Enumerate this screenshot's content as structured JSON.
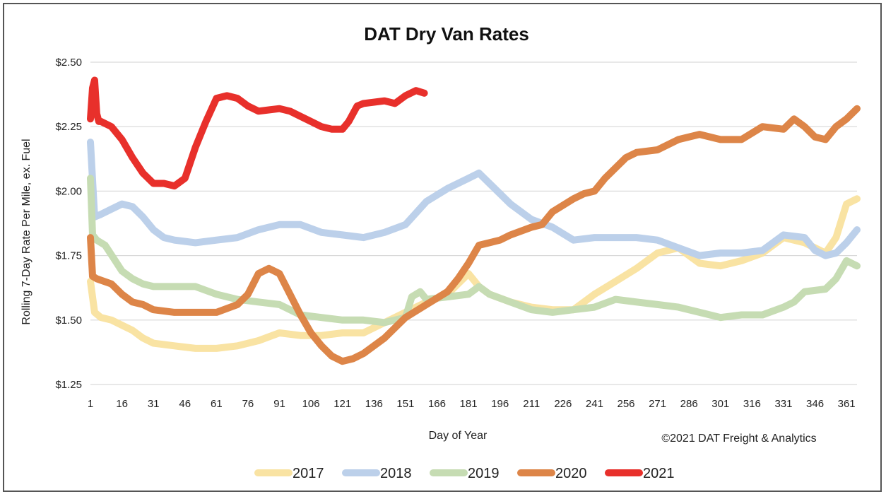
{
  "chart_data": {
    "type": "line",
    "title": "DAT Dry Van Rates",
    "xlabel": "Day of Year",
    "ylabel": "Rolling 7-Day Rate Per Mile, ex. Fuel",
    "credit": "©2021 DAT Freight & Analytics",
    "ylim": [
      1.25,
      2.5
    ],
    "xlim": [
      1,
      366
    ],
    "yticks": [
      {
        "value": 2.5,
        "label": "$2.50"
      },
      {
        "value": 2.25,
        "label": "$2.25"
      },
      {
        "value": 2.0,
        "label": "$2.00"
      },
      {
        "value": 1.75,
        "label": "$1.75"
      },
      {
        "value": 1.5,
        "label": "$1.50"
      },
      {
        "value": 1.25,
        "label": "$1.25"
      }
    ],
    "xticks": [
      1,
      16,
      31,
      46,
      61,
      76,
      91,
      106,
      121,
      136,
      151,
      166,
      181,
      196,
      211,
      226,
      241,
      256,
      271,
      286,
      301,
      316,
      331,
      346,
      361
    ],
    "grid": true,
    "legend_position": "bottom",
    "series": [
      {
        "name": "2017",
        "color": "#f9e3a3",
        "x": [
          1,
          3,
          6,
          11,
          16,
          21,
          26,
          31,
          41,
          51,
          61,
          71,
          81,
          91,
          101,
          111,
          121,
          131,
          141,
          151,
          161,
          171,
          181,
          186,
          191,
          201,
          211,
          221,
          231,
          241,
          251,
          261,
          271,
          281,
          286,
          291,
          301,
          311,
          321,
          331,
          341,
          351,
          356,
          361,
          366
        ],
        "y": [
          1.65,
          1.53,
          1.51,
          1.5,
          1.48,
          1.46,
          1.43,
          1.41,
          1.4,
          1.39,
          1.39,
          1.4,
          1.42,
          1.45,
          1.44,
          1.44,
          1.45,
          1.45,
          1.49,
          1.53,
          1.57,
          1.6,
          1.68,
          1.63,
          1.6,
          1.57,
          1.55,
          1.54,
          1.54,
          1.6,
          1.65,
          1.7,
          1.76,
          1.78,
          1.75,
          1.72,
          1.71,
          1.73,
          1.76,
          1.82,
          1.8,
          1.76,
          1.82,
          1.95,
          1.97
        ]
      },
      {
        "name": "2018",
        "color": "#bcd0ea",
        "x": [
          1,
          3,
          6,
          11,
          16,
          21,
          26,
          31,
          36,
          41,
          51,
          61,
          71,
          81,
          91,
          101,
          111,
          121,
          131,
          141,
          151,
          161,
          171,
          181,
          186,
          191,
          201,
          211,
          221,
          231,
          241,
          251,
          261,
          271,
          281,
          291,
          301,
          311,
          321,
          331,
          341,
          346,
          351,
          356,
          361,
          366
        ],
        "y": [
          2.19,
          1.9,
          1.91,
          1.93,
          1.95,
          1.94,
          1.9,
          1.85,
          1.82,
          1.81,
          1.8,
          1.81,
          1.82,
          1.85,
          1.87,
          1.87,
          1.84,
          1.83,
          1.82,
          1.84,
          1.87,
          1.96,
          2.01,
          2.05,
          2.07,
          2.03,
          1.95,
          1.89,
          1.86,
          1.81,
          1.82,
          1.82,
          1.82,
          1.81,
          1.78,
          1.75,
          1.76,
          1.76,
          1.77,
          1.83,
          1.82,
          1.77,
          1.75,
          1.76,
          1.8,
          1.85
        ]
      },
      {
        "name": "2019",
        "color": "#c6dcb3",
        "x": [
          1,
          2,
          4,
          8,
          12,
          16,
          21,
          26,
          31,
          41,
          51,
          61,
          71,
          81,
          91,
          101,
          111,
          121,
          131,
          141,
          151,
          154,
          158,
          161,
          171,
          181,
          186,
          191,
          201,
          211,
          221,
          231,
          241,
          251,
          261,
          271,
          281,
          291,
          301,
          311,
          321,
          331,
          336,
          341,
          351,
          356,
          361,
          366
        ],
        "y": [
          2.05,
          1.83,
          1.81,
          1.79,
          1.74,
          1.69,
          1.66,
          1.64,
          1.63,
          1.63,
          1.63,
          1.6,
          1.58,
          1.57,
          1.56,
          1.52,
          1.51,
          1.5,
          1.5,
          1.49,
          1.51,
          1.59,
          1.61,
          1.58,
          1.59,
          1.6,
          1.63,
          1.6,
          1.57,
          1.54,
          1.53,
          1.54,
          1.55,
          1.58,
          1.57,
          1.56,
          1.55,
          1.53,
          1.51,
          1.52,
          1.52,
          1.55,
          1.57,
          1.61,
          1.62,
          1.66,
          1.73,
          1.71
        ]
      },
      {
        "name": "2020",
        "color": "#dd8548",
        "x": [
          1,
          2,
          4,
          11,
          16,
          21,
          26,
          31,
          41,
          51,
          61,
          71,
          76,
          81,
          86,
          91,
          96,
          101,
          106,
          111,
          116,
          121,
          126,
          131,
          141,
          151,
          161,
          171,
          176,
          181,
          186,
          191,
          196,
          201,
          211,
          216,
          221,
          231,
          236,
          241,
          246,
          256,
          261,
          271,
          281,
          291,
          301,
          311,
          321,
          331,
          336,
          341,
          346,
          351,
          356,
          361,
          366
        ],
        "y": [
          1.82,
          1.67,
          1.66,
          1.64,
          1.6,
          1.57,
          1.56,
          1.54,
          1.53,
          1.53,
          1.53,
          1.56,
          1.6,
          1.68,
          1.7,
          1.68,
          1.6,
          1.52,
          1.45,
          1.4,
          1.36,
          1.34,
          1.35,
          1.37,
          1.43,
          1.51,
          1.56,
          1.61,
          1.66,
          1.72,
          1.79,
          1.8,
          1.81,
          1.83,
          1.86,
          1.87,
          1.92,
          1.97,
          1.99,
          2.0,
          2.05,
          2.13,
          2.15,
          2.16,
          2.2,
          2.22,
          2.2,
          2.2,
          2.25,
          2.24,
          2.28,
          2.25,
          2.21,
          2.2,
          2.25,
          2.28,
          2.32
        ]
      },
      {
        "name": "2021",
        "color": "#e8302b",
        "x": [
          1,
          2,
          3,
          4,
          5,
          6,
          11,
          16,
          21,
          26,
          31,
          36,
          41,
          46,
          51,
          56,
          61,
          66,
          71,
          76,
          81,
          91,
          96,
          101,
          106,
          111,
          116,
          121,
          124,
          128,
          131,
          141,
          146,
          151,
          156,
          160
        ],
        "y": [
          2.28,
          2.4,
          2.43,
          2.3,
          2.27,
          2.27,
          2.25,
          2.2,
          2.13,
          2.07,
          2.03,
          2.03,
          2.02,
          2.05,
          2.17,
          2.27,
          2.36,
          2.37,
          2.36,
          2.33,
          2.31,
          2.32,
          2.31,
          2.29,
          2.27,
          2.25,
          2.24,
          2.24,
          2.27,
          2.33,
          2.34,
          2.35,
          2.34,
          2.37,
          2.39,
          2.38
        ]
      }
    ]
  }
}
